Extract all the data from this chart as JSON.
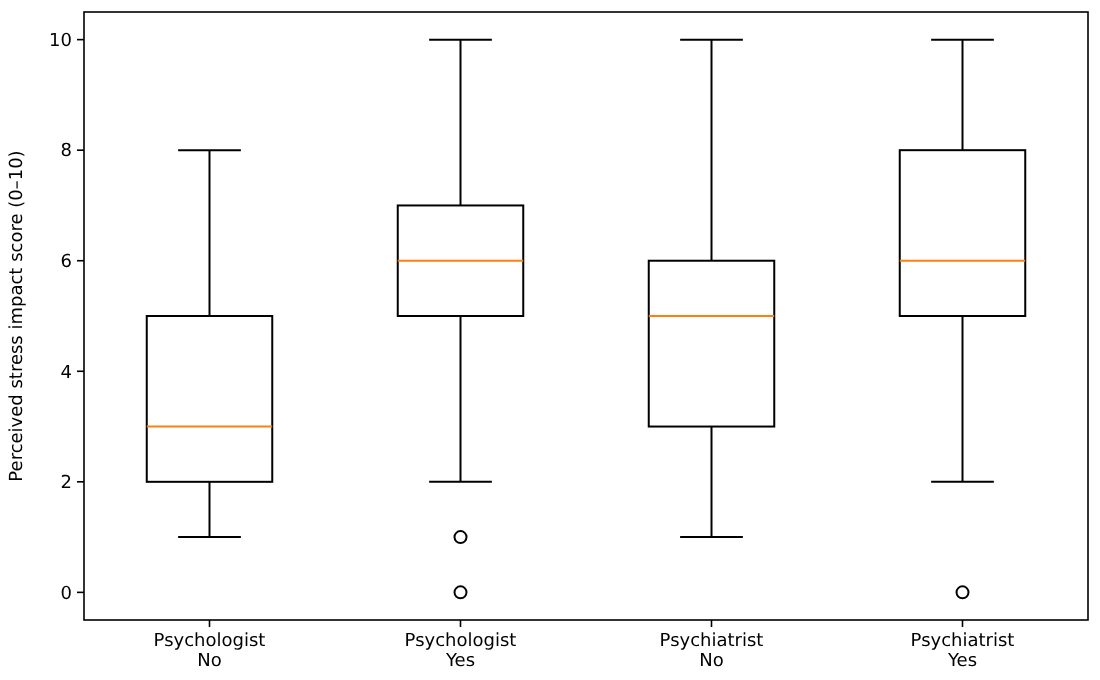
{
  "chart_data": {
    "type": "box",
    "ylabel": "Perceived stress impact score (0–10)",
    "categories": [
      "Psychologist\nNo",
      "Psychologist\nYes",
      "Psychiatrist\nNo",
      "Psychiatrist\nYes"
    ],
    "color": "#000000",
    "boxes": [
      {
        "low": 1,
        "q1": 2,
        "median": 3,
        "q3": 5,
        "high": 8
      },
      {
        "low": 2,
        "q1": 5,
        "median": 6,
        "q3": 7,
        "high": 10,
        "outliers": [
          1,
          0
        ]
      },
      {
        "low": 1,
        "q1": 3,
        "median": 5,
        "q3": 6,
        "high": 10
      },
      {
        "low": 2,
        "q1": 5,
        "median": 6,
        "q3": 8,
        "high": 10,
        "outliers": [
          0
        ]
      }
    ],
    "ylim": [
      -0.5,
      10.5
    ],
    "yticks": [
      0,
      2,
      4,
      6,
      8,
      10
    ],
    "grid": false
  }
}
